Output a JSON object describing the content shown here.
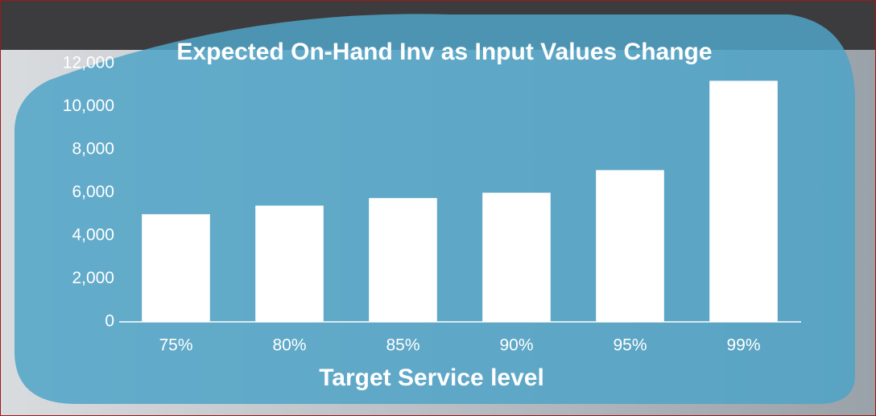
{
  "chart_data": {
    "type": "bar",
    "title": "Expected On-Hand Inv as Input Values Change",
    "x_label": "Target Service level",
    "categories": [
      "75%",
      "80%",
      "85%",
      "90%",
      "95%",
      "99%"
    ],
    "values": [
      5000,
      5400,
      5750,
      6000,
      7050,
      11200
    ],
    "color": "#ffffff",
    "ylim": [
      0,
      12000
    ],
    "yticks": [
      0,
      {
        "value": 2000,
        "label": "2,000"
      },
      {
        "value": 4000,
        "label": "4,000"
      },
      {
        "value": 6000,
        "label": "6,000"
      },
      {
        "value": 8000,
        "label": "8,000"
      },
      {
        "value": 10000,
        "label": "10,000"
      },
      {
        "value": 12000,
        "label": "12,000"
      }
    ],
    "grid": false
  }
}
